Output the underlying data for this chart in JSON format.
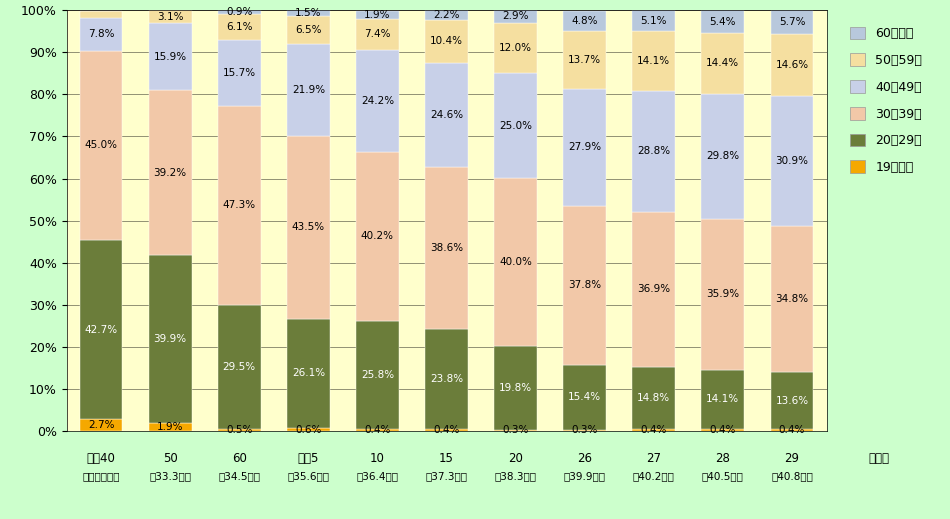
{
  "cat_line1": [
    "昭和40",
    "50",
    "60",
    "平成5",
    "10",
    "15",
    "20",
    "26",
    "27",
    "28",
    "29"
  ],
  "cat_line2": [
    "（平均年齢）",
    "（33.3歳）",
    "（34.5歳）",
    "（35.6歳）",
    "（36.4歳）",
    "（37.3歳）",
    "（38.3歳）",
    "（39.9歳）",
    "（40.2歳）",
    "（40.5歳）",
    "（40.8歳）"
  ],
  "age_under19": [
    2.7,
    1.9,
    0.5,
    0.6,
    0.4,
    0.4,
    0.3,
    0.3,
    0.4,
    0.4,
    0.4
  ],
  "age_20to29": [
    42.7,
    39.9,
    29.5,
    26.1,
    25.8,
    23.8,
    19.8,
    15.4,
    14.8,
    14.1,
    13.6
  ],
  "age_30to39": [
    45.0,
    39.2,
    47.3,
    43.5,
    40.2,
    38.6,
    40.0,
    37.8,
    36.9,
    35.9,
    34.8
  ],
  "age_40to49": [
    7.8,
    15.9,
    15.7,
    21.9,
    24.2,
    24.6,
    25.0,
    27.9,
    28.8,
    29.8,
    30.9
  ],
  "age_50to59": [
    1.7,
    3.1,
    6.1,
    6.5,
    7.4,
    10.4,
    12.0,
    13.7,
    14.1,
    14.4,
    14.6
  ],
  "age_over60": [
    0.0,
    0.0,
    0.9,
    1.5,
    1.9,
    2.2,
    2.9,
    4.8,
    5.1,
    5.4,
    5.7
  ],
  "labels_under19": [
    "2.7%",
    "1.9%",
    "0.5%",
    "0.6%",
    "0.4%",
    "0.4%",
    "0.3%",
    "0.3%",
    "0.4%",
    "0.4%",
    "0.4%"
  ],
  "labels_20to29": [
    "42.7%",
    "39.9%",
    "29.5%",
    "26.1%",
    "25.8%",
    "23.8%",
    "19.8%",
    "15.4%",
    "14.8%",
    "14.1%",
    "13.6%"
  ],
  "labels_30to39": [
    "45.0%",
    "39.2%",
    "47.3%",
    "43.5%",
    "40.2%",
    "38.6%",
    "40.0%",
    "37.8%",
    "36.9%",
    "35.9%",
    "34.8%"
  ],
  "labels_40to49": [
    "7.8%",
    "15.9%",
    "15.7%",
    "21.9%",
    "24.2%",
    "24.6%",
    "25.0%",
    "27.9%",
    "28.8%",
    "29.8%",
    "30.9%"
  ],
  "labels_50to59": [
    "1.7%",
    "3.1%",
    "6.1%",
    "6.5%",
    "7.4%",
    "10.4%",
    "12.0%",
    "13.7%",
    "14.1%",
    "14.4%",
    "14.6%"
  ],
  "labels_over60": [
    "",
    "",
    "0.9%",
    "1.5%",
    "1.9%",
    "2.2%",
    "2.9%",
    "4.8%",
    "5.1%",
    "5.4%",
    "5.7%"
  ],
  "color_under19": "#F5A800",
  "color_20to29": "#6B7D3A",
  "color_30to39": "#F2C8A8",
  "color_40to49": "#C8D0E8",
  "color_50to59": "#F5DFA0",
  "color_over60": "#B8C8DC",
  "background_color": "#CCFFCC",
  "plot_background": "#FFFFCC",
  "year_label": "（年）",
  "legend_labels": [
    "60歳以上",
    "50～59歳",
    "40～49歳",
    "30～39歳",
    "20～29歳",
    "19歳以下"
  ],
  "figsize": [
    9.5,
    5.19
  ]
}
